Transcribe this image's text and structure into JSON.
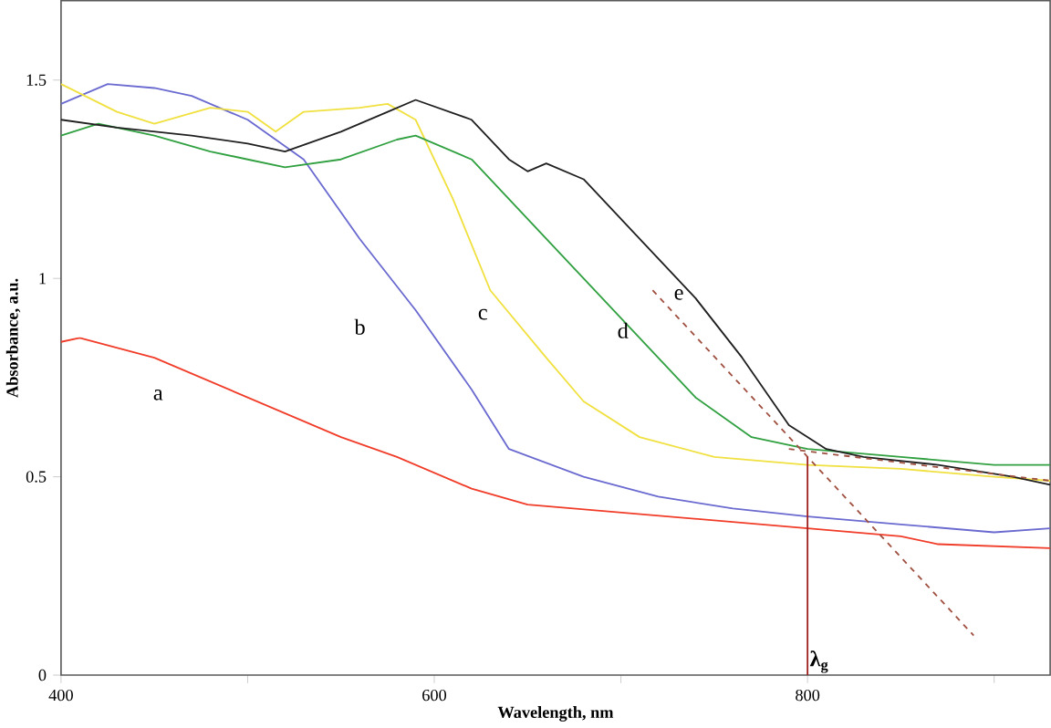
{
  "chart_data": {
    "type": "line",
    "xlabel": "Wavelength, nm",
    "ylabel": "Absorbance, a.u.",
    "xlim": [
      400,
      930
    ],
    "ylim": [
      0,
      1.7
    ],
    "xticks": [
      400,
      {
        "value": 500,
        "label": null
      },
      600,
      {
        "value": 700,
        "label": null
      },
      800,
      {
        "value": 900,
        "label": null
      }
    ],
    "yticks": [
      0,
      0.5,
      1,
      1.5
    ],
    "grid": false,
    "legend": false,
    "marker": "none",
    "series": [
      {
        "name": "a",
        "color": "#f03c28",
        "x": [
          400,
          410,
          450,
          500,
          550,
          580,
          620,
          650,
          700,
          750,
          800,
          850,
          870,
          930
        ],
        "values": [
          0.84,
          0.85,
          0.8,
          0.7,
          0.6,
          0.55,
          0.47,
          0.43,
          0.41,
          0.39,
          0.37,
          0.35,
          0.33,
          0.32
        ]
      },
      {
        "name": "b",
        "color": "#6a6ad0",
        "x": [
          400,
          425,
          450,
          470,
          500,
          530,
          560,
          590,
          620,
          640,
          680,
          720,
          760,
          800,
          850,
          900,
          930
        ],
        "values": [
          1.44,
          1.49,
          1.48,
          1.46,
          1.4,
          1.3,
          1.1,
          0.92,
          0.72,
          0.57,
          0.5,
          0.45,
          0.42,
          0.4,
          0.38,
          0.36,
          0.37
        ]
      },
      {
        "name": "c",
        "color": "#f0e040",
        "x": [
          400,
          430,
          450,
          480,
          500,
          515,
          530,
          560,
          575,
          590,
          610,
          630,
          660,
          680,
          710,
          750,
          800,
          850,
          900,
          930
        ],
        "values": [
          1.49,
          1.42,
          1.39,
          1.43,
          1.42,
          1.37,
          1.42,
          1.43,
          1.44,
          1.4,
          1.2,
          0.97,
          0.8,
          0.69,
          0.6,
          0.55,
          0.53,
          0.52,
          0.5,
          0.49
        ]
      },
      {
        "name": "d",
        "color": "#30a040",
        "x": [
          400,
          420,
          450,
          480,
          500,
          520,
          550,
          580,
          590,
          620,
          650,
          680,
          710,
          740,
          770,
          800,
          850,
          900,
          930
        ],
        "values": [
          1.36,
          1.39,
          1.36,
          1.32,
          1.3,
          1.28,
          1.3,
          1.35,
          1.36,
          1.3,
          1.15,
          1.0,
          0.85,
          0.7,
          0.6,
          0.57,
          0.55,
          0.53,
          0.53
        ]
      },
      {
        "name": "e",
        "color": "#202020",
        "x": [
          400,
          430,
          470,
          500,
          520,
          550,
          575,
          590,
          620,
          640,
          650,
          660,
          680,
          710,
          740,
          765,
          790,
          810,
          830,
          870,
          910,
          930
        ],
        "values": [
          1.4,
          1.38,
          1.36,
          1.34,
          1.32,
          1.37,
          1.42,
          1.45,
          1.4,
          1.3,
          1.27,
          1.29,
          1.25,
          1.1,
          0.95,
          0.8,
          0.63,
          0.57,
          0.55,
          0.53,
          0.5,
          0.48
        ]
      },
      {
        "color": "#a05040",
        "line_style": "dashed",
        "x": [
          717,
          889
        ],
        "values": [
          0.97,
          0.1
        ]
      },
      {
        "color": "#a05040",
        "line_style": "dashed",
        "x": [
          790,
          930
        ],
        "values": [
          0.57,
          0.49
        ]
      },
      {
        "color": "#a02020",
        "x": [
          800,
          800
        ],
        "values": [
          0,
          0.55
        ]
      }
    ],
    "annotations": [
      {
        "text": "λ$_{g}$",
        "x": 800,
        "y": 0
      }
    ]
  }
}
